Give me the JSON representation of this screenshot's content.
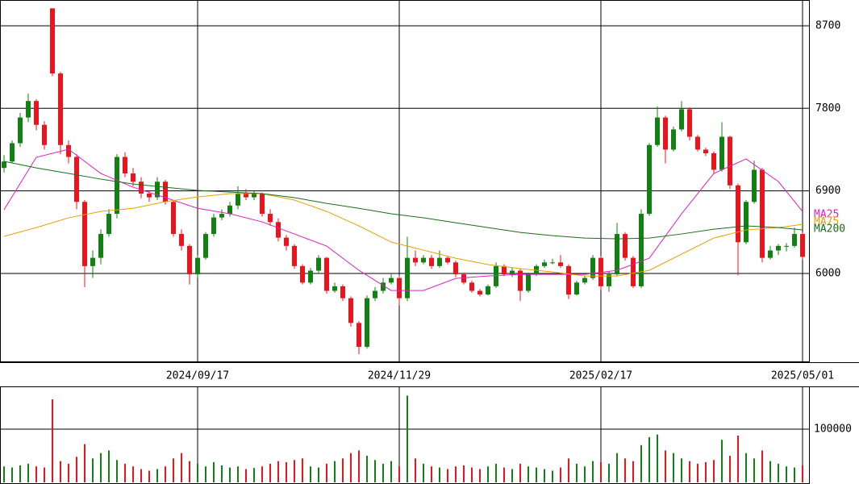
{
  "chart_data": {
    "type": "candlestick",
    "categories": [
      null,
      null,
      null,
      null,
      null,
      null,
      null,
      null,
      null,
      null,
      null,
      null,
      null,
      null,
      null,
      null,
      null,
      null,
      null,
      null,
      null,
      null,
      null,
      null,
      "2024/09/17",
      null,
      null,
      null,
      null,
      null,
      null,
      null,
      null,
      null,
      null,
      null,
      null,
      null,
      null,
      null,
      null,
      null,
      null,
      null,
      null,
      null,
      null,
      null,
      null,
      "2024/11/29",
      null,
      null,
      null,
      null,
      null,
      null,
      null,
      null,
      null,
      null,
      null,
      null,
      null,
      null,
      null,
      null,
      null,
      null,
      null,
      null,
      null,
      null,
      null,
      null,
      "2025/02/17",
      null,
      null,
      null,
      null,
      null,
      null,
      null,
      null,
      null,
      null,
      null,
      null,
      null,
      null,
      null,
      null,
      null,
      null,
      null,
      null,
      null,
      null,
      null,
      null,
      "2025/05/01"
    ],
    "ohlc": [
      [
        7150,
        7290,
        7100,
        7220
      ],
      [
        7220,
        7450,
        7200,
        7420
      ],
      [
        7420,
        7750,
        7380,
        7700
      ],
      [
        7700,
        7960,
        7650,
        7880
      ],
      [
        7880,
        7900,
        7560,
        7620
      ],
      [
        7620,
        7660,
        7350,
        7400
      ],
      [
        8890,
        8890,
        8150,
        8180
      ],
      [
        8180,
        8200,
        7300,
        7400
      ],
      [
        7400,
        7450,
        7200,
        7270
      ],
      [
        7270,
        7300,
        6700,
        6780
      ],
      [
        6780,
        6800,
        5850,
        6080
      ],
      [
        6080,
        6250,
        5950,
        6170
      ],
      [
        6170,
        6480,
        6100,
        6430
      ],
      [
        6430,
        6700,
        6400,
        6650
      ],
      [
        6650,
        7300,
        6600,
        7270
      ],
      [
        7270,
        7320,
        7050,
        7090
      ],
      [
        7090,
        7150,
        6950,
        7000
      ],
      [
        7000,
        7050,
        6820,
        6870
      ],
      [
        6870,
        6900,
        6780,
        6830
      ],
      [
        6830,
        7050,
        6800,
        7000
      ],
      [
        7000,
        7020,
        6750,
        6780
      ],
      [
        6780,
        6800,
        6400,
        6430
      ],
      [
        6430,
        6480,
        6250,
        6300
      ],
      [
        6300,
        6320,
        5880,
        5990
      ],
      [
        5990,
        6200,
        5950,
        6170
      ],
      [
        6170,
        6450,
        6150,
        6430
      ],
      [
        6430,
        6650,
        6400,
        6610
      ],
      [
        6610,
        6700,
        6580,
        6650
      ],
      [
        6650,
        6780,
        6620,
        6740
      ],
      [
        6740,
        6950,
        6700,
        6870
      ],
      [
        6870,
        6920,
        6800,
        6830
      ],
      [
        6830,
        6900,
        6800,
        6870
      ],
      [
        6870,
        6880,
        6620,
        6650
      ],
      [
        6650,
        6700,
        6520,
        6560
      ],
      [
        6560,
        6600,
        6350,
        6390
      ],
      [
        6390,
        6420,
        6250,
        6300
      ],
      [
        6300,
        6320,
        6050,
        6080
      ],
      [
        6080,
        6100,
        5880,
        5900
      ],
      [
        5900,
        6060,
        5880,
        6030
      ],
      [
        6030,
        6200,
        6000,
        6170
      ],
      [
        6170,
        6180,
        5780,
        5810
      ],
      [
        5810,
        5900,
        5790,
        5860
      ],
      [
        5860,
        5880,
        5700,
        5730
      ],
      [
        5730,
        5750,
        5420,
        5460
      ],
      [
        5460,
        5480,
        5120,
        5200
      ],
      [
        5200,
        5760,
        5180,
        5730
      ],
      [
        5730,
        5850,
        5700,
        5810
      ],
      [
        5810,
        5950,
        5780,
        5900
      ],
      [
        5900,
        6000,
        5880,
        5950
      ],
      [
        5950,
        5980,
        5650,
        5730
      ],
      [
        5730,
        6400,
        5700,
        6170
      ],
      [
        6170,
        6250,
        6080,
        6120
      ],
      [
        6120,
        6200,
        6100,
        6170
      ],
      [
        6170,
        6200,
        6050,
        6080
      ],
      [
        6080,
        6250,
        6060,
        6170
      ],
      [
        6170,
        6190,
        6100,
        6120
      ],
      [
        6120,
        6140,
        5960,
        5990
      ],
      [
        5990,
        6010,
        5880,
        5900
      ],
      [
        5900,
        5920,
        5790,
        5810
      ],
      [
        5810,
        5830,
        5750,
        5770
      ],
      [
        5770,
        5880,
        5760,
        5860
      ],
      [
        5860,
        6120,
        5840,
        6080
      ],
      [
        6080,
        6100,
        5970,
        5990
      ],
      [
        5990,
        6060,
        5960,
        6030
      ],
      [
        6030,
        6050,
        5700,
        5810
      ],
      [
        5810,
        6010,
        5790,
        5990
      ],
      [
        5990,
        6100,
        5970,
        6080
      ],
      [
        6080,
        6150,
        6060,
        6120
      ],
      [
        6120,
        6160,
        6100,
        6120
      ],
      [
        6120,
        6200,
        6060,
        6080
      ],
      [
        6080,
        6100,
        5720,
        5770
      ],
      [
        5770,
        5920,
        5760,
        5900
      ],
      [
        5900,
        5970,
        5880,
        5950
      ],
      [
        5950,
        6200,
        5930,
        6170
      ],
      [
        6170,
        6190,
        5820,
        5860
      ],
      [
        5860,
        6020,
        5800,
        5990
      ],
      [
        5990,
        6550,
        5970,
        6430
      ],
      [
        6430,
        6450,
        6140,
        6170
      ],
      [
        6170,
        6190,
        5840,
        5860
      ],
      [
        5860,
        6700,
        5840,
        6650
      ],
      [
        6650,
        7420,
        6630,
        7400
      ],
      [
        7400,
        7820,
        7380,
        7700
      ],
      [
        7700,
        7720,
        7200,
        7350
      ],
      [
        7350,
        7600,
        7330,
        7570
      ],
      [
        7570,
        7880,
        7550,
        7790
      ],
      [
        7790,
        7810,
        7450,
        7490
      ],
      [
        7490,
        7510,
        7330,
        7350
      ],
      [
        7350,
        7370,
        7280,
        7310
      ],
      [
        7310,
        7330,
        7080,
        7130
      ],
      [
        7130,
        7650,
        7110,
        7490
      ],
      [
        7490,
        7500,
        6920,
        6960
      ],
      [
        6960,
        6980,
        5980,
        6340
      ],
      [
        6340,
        6800,
        6320,
        6780
      ],
      [
        6780,
        7230,
        6760,
        7130
      ],
      [
        7130,
        7150,
        6120,
        6170
      ],
      [
        6170,
        6300,
        6150,
        6250
      ],
      [
        6250,
        6320,
        6200,
        6300
      ],
      [
        6300,
        6330,
        6240,
        6300
      ],
      [
        6300,
        6500,
        6280,
        6430
      ],
      [
        6430,
        6450,
        6150,
        6180
      ]
    ],
    "up_color": "#128012",
    "down_color": "#e8141e",
    "ylim": [
      5041,
      8981
    ],
    "yticks": [
      6000,
      6900,
      7800,
      8700
    ],
    "grid": true,
    "moving_averages": {
      "x": [
        0,
        4,
        8,
        12,
        16,
        20,
        24,
        28,
        32,
        36,
        40,
        44,
        48,
        52,
        56,
        60,
        64,
        68,
        72,
        76,
        80,
        84,
        88,
        92,
        96,
        99
      ],
      "series": [
        {
          "name": "MA25",
          "color": "#e020c0",
          "values": [
            6694,
            7266,
            7354,
            7090,
            6940,
            6826,
            6710,
            6650,
            6562,
            6430,
            6298,
            6034,
            5814,
            5814,
            5946,
            5972,
            5990,
            5990,
            5990,
            6034,
            6166,
            6650,
            7090,
            7248,
            7002,
            6676
          ]
        },
        {
          "name": "MA75",
          "color": "#e8a000",
          "values": [
            6404,
            6500,
            6606,
            6676,
            6710,
            6782,
            6834,
            6870,
            6870,
            6800,
            6676,
            6518,
            6342,
            6254,
            6166,
            6096,
            6052,
            6016,
            5972,
            5972,
            6034,
            6210,
            6386,
            6474,
            6500,
            6535
          ]
        },
        {
          "name": "MA200",
          "color": "#1a6e1a",
          "values": [
            7222,
            7151,
            7090,
            7028,
            6975,
            6940,
            6905,
            6887,
            6870,
            6826,
            6764,
            6710,
            6650,
            6606,
            6553,
            6500,
            6447,
            6412,
            6386,
            6377,
            6386,
            6430,
            6482,
            6518,
            6500,
            6474
          ]
        }
      ]
    },
    "volume": {
      "values": [
        30000,
        28000,
        32000,
        35000,
        30000,
        28000,
        156000,
        40000,
        35000,
        48000,
        72000,
        45000,
        55000,
        60000,
        42000,
        35000,
        30000,
        25000,
        22000,
        25000,
        30000,
        45000,
        55000,
        40000,
        35000,
        30000,
        38000,
        32000,
        28000,
        30000,
        25000,
        27000,
        30000,
        35000,
        40000,
        38000,
        42000,
        45000,
        30000,
        28000,
        35000,
        40000,
        45000,
        55000,
        60000,
        50000,
        42000,
        35000,
        40000,
        30000,
        163000,
        45000,
        35000,
        30000,
        28000,
        25000,
        30000,
        32000,
        28000,
        25000,
        30000,
        35000,
        28000,
        25000,
        35000,
        30000,
        28000,
        25000,
        22000,
        28000,
        45000,
        35000,
        30000,
        40000,
        38000,
        35000,
        55000,
        45000,
        40000,
        70000,
        85000,
        90000,
        60000,
        55000,
        45000,
        40000,
        35000,
        38000,
        42000,
        80000,
        50000,
        88000,
        55000,
        45000,
        60000,
        40000,
        35000,
        30000,
        28000,
        32000
      ],
      "ylim": [
        0,
        178800
      ],
      "yticks": [
        100000
      ]
    }
  }
}
